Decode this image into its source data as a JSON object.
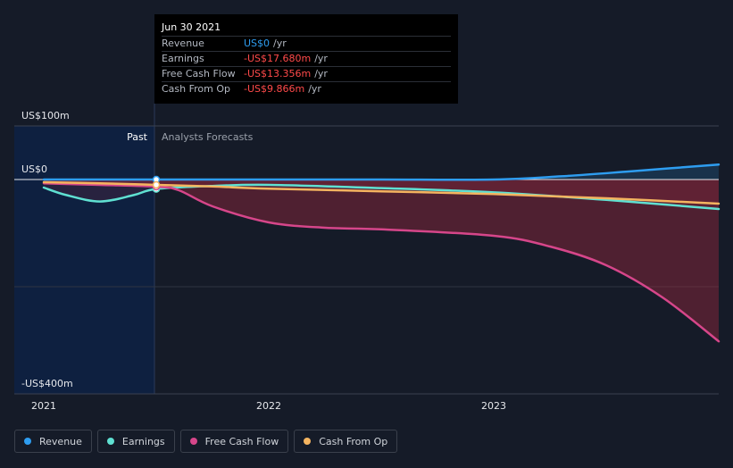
{
  "tooltip": {
    "date": "Jun 30 2021",
    "rows": [
      {
        "label": "Revenue",
        "value": "US$0",
        "unit": "/yr"
      },
      {
        "label": "Earnings",
        "value": "-US$17.680m",
        "unit": "/yr"
      },
      {
        "label": "Free Cash Flow",
        "value": "-US$13.356m",
        "unit": "/yr"
      },
      {
        "label": "Cash From Op",
        "value": "-US$9.866m",
        "unit": "/yr"
      }
    ]
  },
  "labels": {
    "past": "Past",
    "forecast": "Analysts Forecasts"
  },
  "colors": {
    "revenue": "#2e9df0",
    "earnings": "#5fe0d2",
    "free_cash_flow": "#d6468a",
    "cash_from_op": "#f4b460"
  },
  "chart_data": {
    "type": "line",
    "xlim": [
      2021.0,
      2024.0
    ],
    "ylim": [
      -400,
      100
    ],
    "y_ticks": [
      {
        "value": 100,
        "label": "US$100m"
      },
      {
        "value": 0,
        "label": "US$0"
      },
      {
        "value": -400,
        "label": "-US$400m"
      }
    ],
    "x_ticks": [
      {
        "value": 2021.0,
        "label": "2021"
      },
      {
        "value": 2022.0,
        "label": "2022"
      },
      {
        "value": 2023.0,
        "label": "2023"
      }
    ],
    "past_end": 2021.5,
    "grid": true,
    "legend_position": "bottom-left",
    "series": [
      {
        "name": "Revenue",
        "color_key": "revenue",
        "x": [
          2021.0,
          2021.5,
          2022.0,
          2022.5,
          2023.0,
          2023.3,
          2023.6,
          2024.0
        ],
        "y": [
          0,
          0,
          0,
          0,
          0,
          6,
          15,
          28
        ]
      },
      {
        "name": "Earnings",
        "color_key": "earnings",
        "x": [
          2021.0,
          2021.1,
          2021.25,
          2021.4,
          2021.5,
          2021.75,
          2022.0,
          2022.5,
          2023.0,
          2023.5,
          2024.0
        ],
        "y": [
          -15,
          -29,
          -41,
          -29,
          -17.7,
          -12,
          -10,
          -16,
          -24,
          -38,
          -55
        ]
      },
      {
        "name": "Free Cash Flow",
        "color_key": "free_cash_flow",
        "x": [
          2021.0,
          2021.25,
          2021.5,
          2021.6,
          2021.75,
          2022.0,
          2022.25,
          2022.5,
          2023.0,
          2023.25,
          2023.5,
          2023.75,
          2024.0
        ],
        "y": [
          -7,
          -10,
          -13.4,
          -20,
          -50,
          -80,
          -90,
          -93,
          -105,
          -125,
          -160,
          -220,
          -302
        ]
      },
      {
        "name": "Cash From Op",
        "color_key": "cash_from_op",
        "x": [
          2021.0,
          2021.25,
          2021.5,
          2021.75,
          2022.0,
          2022.5,
          2023.0,
          2023.5,
          2024.0
        ],
        "y": [
          -5,
          -7,
          -9.9,
          -13,
          -17,
          -22,
          -27,
          -35,
          -45
        ]
      }
    ]
  }
}
